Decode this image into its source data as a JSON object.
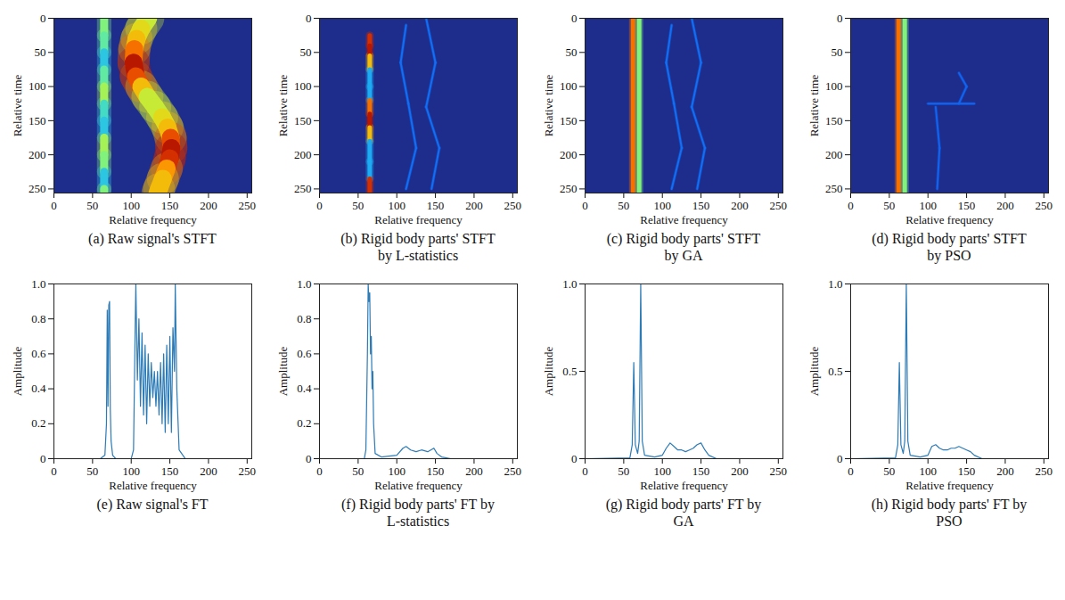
{
  "chart_data": [
    {
      "type": "heatmap",
      "title": "(a) Raw signal's STFT",
      "xlabel": "Relative frequency",
      "ylabel": "Relative time",
      "xlim": [
        0,
        256
      ],
      "ylim": [
        0,
        256
      ],
      "xticks": [
        0,
        50,
        100,
        150,
        200,
        250
      ],
      "yticks": [
        0,
        50,
        100,
        150,
        200,
        250
      ],
      "intensity_range": [
        0,
        1
      ],
      "tracks": [
        {
          "time": [
            0,
            25,
            50,
            75,
            100,
            125,
            150,
            175,
            200,
            225,
            250,
            256
          ],
          "frequency": [
            65,
            65,
            65,
            65,
            65,
            65,
            65,
            65,
            65,
            65,
            65,
            65
          ],
          "intensity": [
            0.5,
            0.45,
            0.35,
            0.45,
            0.55,
            0.4,
            0.35,
            0.55,
            0.5,
            0.35,
            0.5,
            0.5
          ]
        },
        {
          "time": [
            0,
            15,
            30,
            45,
            65,
            85,
            100,
            115,
            130,
            145,
            160,
            175,
            190,
            205,
            220,
            235,
            250,
            256
          ],
          "frequency": [
            122,
            113,
            107,
            104,
            103,
            106,
            113,
            121,
            131,
            140,
            147,
            151,
            152,
            150,
            146,
            141,
            136,
            134
          ],
          "intensity": [
            0.6,
            0.65,
            0.7,
            0.8,
            0.95,
            0.85,
            0.7,
            0.6,
            0.6,
            0.65,
            0.7,
            0.85,
            0.95,
            0.9,
            0.75,
            0.7,
            0.7,
            0.7
          ]
        }
      ]
    },
    {
      "type": "heatmap",
      "title": "(b) Rigid body parts' STFT by L-statistics",
      "xlabel": "Relative frequency",
      "ylabel": "Relative time",
      "xlim": [
        0,
        256
      ],
      "ylim": [
        0,
        256
      ],
      "xticks": [
        0,
        50,
        100,
        150,
        200,
        250
      ],
      "yticks": [
        0,
        50,
        100,
        150,
        200,
        250
      ],
      "intensity_range": [
        0,
        1
      ],
      "tracks": [
        {
          "time": [
            25,
            40,
            55,
            75,
            100,
            120,
            140,
            160,
            180,
            210,
            235,
            256
          ],
          "frequency": [
            65,
            65,
            65,
            65,
            65,
            65,
            65,
            65,
            65,
            65,
            65,
            65
          ],
          "intensity": [
            0.9,
            0.95,
            0.7,
            0.3,
            0.3,
            0.8,
            0.95,
            0.7,
            0.3,
            0.3,
            0.9,
            0.95
          ]
        },
        {
          "time": [
            10,
            65,
            125,
            190,
            250
          ],
          "frequency": [
            112,
            105,
            115,
            125,
            112
          ],
          "intensity": [
            0.2,
            0.2,
            0.2,
            0.2,
            0.2
          ]
        },
        {
          "time": [
            0,
            65,
            130,
            190,
            250
          ],
          "frequency": [
            138,
            150,
            138,
            155,
            145
          ],
          "intensity": [
            0.2,
            0.2,
            0.2,
            0.2,
            0.2
          ]
        }
      ]
    },
    {
      "type": "heatmap",
      "title": "(c) Rigid body parts' STFT by GA",
      "xlabel": "Relative frequency",
      "ylabel": "Relative time",
      "xlim": [
        0,
        256
      ],
      "ylim": [
        0,
        256
      ],
      "xticks": [
        0,
        50,
        100,
        150,
        200,
        250
      ],
      "yticks": [
        0,
        50,
        100,
        150,
        200,
        250
      ],
      "intensity_range": [
        0,
        1
      ],
      "tracks": [
        {
          "time": [
            0,
            256
          ],
          "frequency": [
            62,
            62
          ],
          "intensity": [
            0.8,
            0.8
          ]
        },
        {
          "time": [
            0,
            256
          ],
          "frequency": [
            70,
            70
          ],
          "intensity": [
            0.5,
            0.5
          ]
        },
        {
          "time": [
            10,
            65,
            125,
            190,
            250
          ],
          "frequency": [
            112,
            105,
            115,
            125,
            112
          ],
          "intensity": [
            0.2,
            0.2,
            0.2,
            0.2,
            0.2
          ]
        },
        {
          "time": [
            0,
            65,
            130,
            190,
            250
          ],
          "frequency": [
            138,
            150,
            138,
            155,
            145
          ],
          "intensity": [
            0.2,
            0.2,
            0.2,
            0.2,
            0.2
          ]
        }
      ]
    },
    {
      "type": "heatmap",
      "title": "(d) Rigid body parts' STFT by PSO",
      "xlabel": "Relative frequency",
      "ylabel": "Relative time",
      "xlim": [
        0,
        256
      ],
      "ylim": [
        0,
        256
      ],
      "xticks": [
        0,
        50,
        100,
        150,
        200,
        250
      ],
      "yticks": [
        0,
        50,
        100,
        150,
        200,
        250
      ],
      "intensity_range": [
        0,
        1
      ],
      "tracks": [
        {
          "time": [
            0,
            256
          ],
          "frequency": [
            62,
            62
          ],
          "intensity": [
            0.8,
            0.8
          ]
        },
        {
          "time": [
            0,
            256
          ],
          "frequency": [
            70,
            70
          ],
          "intensity": [
            0.5,
            0.5
          ]
        },
        {
          "time": [
            80,
            100,
            125
          ],
          "frequency": [
            140,
            150,
            140
          ],
          "intensity": [
            0.18,
            0.18,
            0.18
          ]
        },
        {
          "time": [
            125,
            125
          ],
          "frequency": [
            100,
            160
          ],
          "intensity": [
            0.18,
            0.18
          ]
        },
        {
          "time": [
            130,
            190,
            250
          ],
          "frequency": [
            110,
            115,
            112
          ],
          "intensity": [
            0.18,
            0.18,
            0.18
          ]
        }
      ]
    },
    {
      "type": "line",
      "title": "(e) Raw signal's FT",
      "xlabel": "Relative frequency",
      "ylabel": "Amplitude",
      "xlim": [
        0,
        256
      ],
      "ylim": [
        0,
        1
      ],
      "xticks": [
        0,
        50,
        100,
        150,
        200,
        250
      ],
      "yticks": [
        0,
        0.2,
        0.4,
        0.6,
        0.8,
        {
          "value": 1,
          "label": "1.0"
        }
      ],
      "color": "#2c7bb6",
      "x": [
        0,
        60,
        66,
        68,
        69,
        70,
        71,
        72,
        73,
        74,
        76,
        80,
        100,
        103,
        105,
        106,
        108,
        110,
        112,
        114,
        116,
        118,
        120,
        122,
        124,
        126,
        128,
        130,
        132,
        134,
        136,
        138,
        140,
        142,
        144,
        146,
        148,
        150,
        152,
        154,
        156,
        157,
        159,
        162,
        170,
        256
      ],
      "values": [
        0,
        0,
        0.02,
        0.2,
        0.85,
        0.3,
        0.88,
        0.9,
        0.28,
        0.1,
        0.02,
        0,
        0,
        0.05,
        0.7,
        1.0,
        0.45,
        0.8,
        0.3,
        0.72,
        0.25,
        0.65,
        0.2,
        0.6,
        0.3,
        0.55,
        0.35,
        0.5,
        0.3,
        0.5,
        0.25,
        0.55,
        0.2,
        0.6,
        0.15,
        0.65,
        0.2,
        0.7,
        0.15,
        0.75,
        0.5,
        1.0,
        0.4,
        0.05,
        0,
        0
      ]
    },
    {
      "type": "line",
      "title": "(f) Rigid body parts' FT by L-statistics",
      "xlabel": "Relative frequency",
      "ylabel": "Amplitude",
      "xlim": [
        0,
        256
      ],
      "ylim": [
        0,
        1
      ],
      "xticks": [
        0,
        50,
        100,
        150,
        200,
        250
      ],
      "yticks": [
        0,
        0.2,
        0.4,
        0.6,
        0.8,
        {
          "value": 1,
          "label": "1.0"
        }
      ],
      "color": "#2c7bb6",
      "x": [
        0,
        58,
        60,
        62,
        63,
        64,
        65,
        66,
        67,
        68,
        69,
        70,
        72,
        80,
        100,
        108,
        112,
        118,
        125,
        132,
        140,
        148,
        152,
        158,
        170,
        256
      ],
      "values": [
        0,
        0,
        0.05,
        0.6,
        1.0,
        0.9,
        0.95,
        0.6,
        0.7,
        0.4,
        0.5,
        0.2,
        0.03,
        0.01,
        0.02,
        0.06,
        0.07,
        0.05,
        0.04,
        0.05,
        0.04,
        0.06,
        0.03,
        0.01,
        0,
        0
      ]
    },
    {
      "type": "line",
      "title": "(g) Rigid body parts' FT by GA",
      "xlabel": "Relative frequency",
      "ylabel": "Amplitude",
      "xlim": [
        0,
        256
      ],
      "ylim": [
        0,
        1
      ],
      "xticks": [
        0,
        50,
        100,
        150,
        200,
        250
      ],
      "yticks": [
        0,
        0.5,
        {
          "value": 1,
          "label": "1.0"
        }
      ],
      "color": "#2c7bb6",
      "x": [
        0,
        58,
        61,
        63,
        65,
        68,
        70,
        72,
        74,
        77,
        90,
        100,
        105,
        110,
        115,
        120,
        125,
        130,
        135,
        140,
        145,
        150,
        155,
        160,
        170,
        256
      ],
      "values": [
        0,
        0.005,
        0.08,
        0.55,
        0.08,
        0.03,
        0.1,
        1.0,
        0.1,
        0.02,
        0.01,
        0.02,
        0.06,
        0.09,
        0.07,
        0.05,
        0.05,
        0.04,
        0.05,
        0.06,
        0.08,
        0.09,
        0.05,
        0.02,
        0,
        0
      ]
    },
    {
      "type": "line",
      "title": "(h) Rigid body parts' FT by PSO",
      "xlabel": "Relative frequency",
      "ylabel": "Amplitude",
      "xlim": [
        0,
        256
      ],
      "ylim": [
        0,
        1
      ],
      "xticks": [
        0,
        50,
        100,
        150,
        200,
        250
      ],
      "yticks": [
        0,
        0.5,
        {
          "value": 1,
          "label": "1.0"
        }
      ],
      "color": "#2c7bb6",
      "x": [
        0,
        58,
        61,
        63,
        65,
        68,
        70,
        72,
        74,
        77,
        90,
        100,
        105,
        110,
        115,
        120,
        125,
        130,
        135,
        140,
        145,
        150,
        155,
        160,
        170,
        256
      ],
      "values": [
        0,
        0.005,
        0.08,
        0.55,
        0.08,
        0.03,
        0.1,
        1.0,
        0.1,
        0.02,
        0.01,
        0.02,
        0.07,
        0.08,
        0.06,
        0.05,
        0.05,
        0.06,
        0.06,
        0.07,
        0.06,
        0.05,
        0.04,
        0.02,
        0,
        0
      ]
    }
  ]
}
